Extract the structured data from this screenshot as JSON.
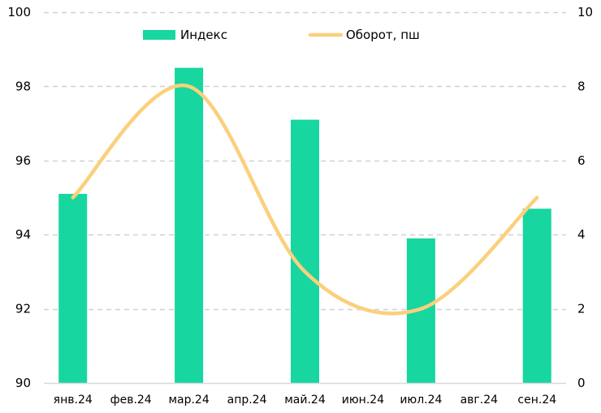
{
  "chart_data": {
    "type": "bar",
    "categories": [
      "янв.24",
      "фев.24",
      "мар.24",
      "апр.24",
      "май.24",
      "июн.24",
      "июл.24",
      "авг.24",
      "сен.24"
    ],
    "series": [
      {
        "name": "Индекс",
        "type": "bar",
        "axis": "left",
        "color": "#17d6a0",
        "values": [
          95.1,
          null,
          98.5,
          null,
          97.1,
          null,
          93.9,
          null,
          94.7
        ]
      },
      {
        "name": "Оборот, пш",
        "type": "line",
        "axis": "right",
        "color": "#fbd07c",
        "smooth": true,
        "values": [
          5.0,
          null,
          8.0,
          null,
          3.0,
          null,
          2.0,
          null,
          5.0
        ]
      }
    ],
    "y_left": {
      "min": 90,
      "max": 100,
      "ticks": [
        90,
        92,
        94,
        96,
        98,
        100
      ]
    },
    "y_right": {
      "min": 0,
      "max": 10,
      "ticks": [
        0,
        2,
        4,
        6,
        8,
        10
      ]
    },
    "grid": "horizontal-dashed",
    "legend_position": "top"
  }
}
